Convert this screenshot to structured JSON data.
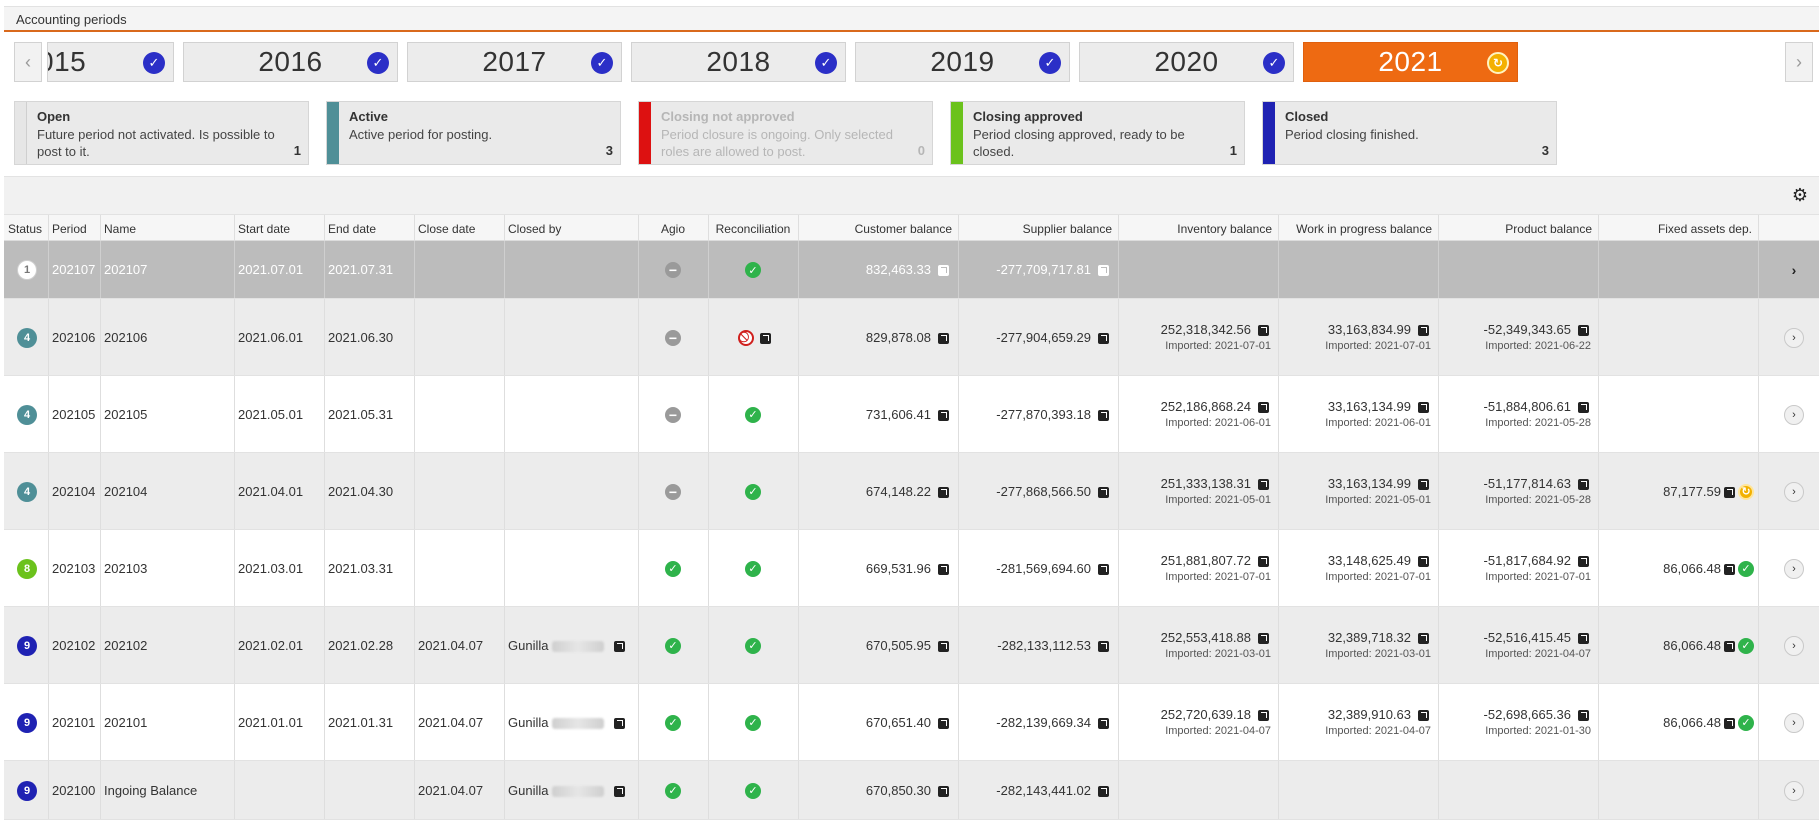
{
  "header": {
    "title": "Accounting periods"
  },
  "years": {
    "prev_icon": "chevron-left-icon",
    "next_icon": "chevron-right-icon",
    "items": [
      {
        "label": "015",
        "state": "closed",
        "badge_icon": "check-icon"
      },
      {
        "label": "2016",
        "state": "closed",
        "badge_icon": "check-icon"
      },
      {
        "label": "2017",
        "state": "closed",
        "badge_icon": "check-icon"
      },
      {
        "label": "2018",
        "state": "closed",
        "badge_icon": "check-icon"
      },
      {
        "label": "2019",
        "state": "closed",
        "badge_icon": "check-icon"
      },
      {
        "label": "2020",
        "state": "closed",
        "badge_icon": "check-icon"
      },
      {
        "label": "2021",
        "state": "active",
        "badge_icon": "refresh-icon"
      }
    ]
  },
  "legend": [
    {
      "title": "Open",
      "desc": "Future period not activated. Is possible to post to it.",
      "count": "1",
      "color": "#e6e6e6"
    },
    {
      "title": "Active",
      "desc": "Active period for posting.",
      "count": "3",
      "color": "#4f8f97"
    },
    {
      "title": "Closing not approved",
      "desc": "Period closure is ongoing. Only selected roles are allowed to post.",
      "count": "0",
      "color": "#dd1111"
    },
    {
      "title": "Closing approved",
      "desc": "Period closing approved, ready to be closed.",
      "count": "1",
      "color": "#6bc21c"
    },
    {
      "title": "Closed",
      "desc": "Period closing finished.",
      "count": "3",
      "color": "#1f22b3"
    }
  ],
  "toolbar": {
    "settings_icon": "gear-icon"
  },
  "table": {
    "columns": [
      "Status",
      "Period",
      "Name",
      "Start date",
      "End date",
      "Close date",
      "Closed by",
      "Agio",
      "Reconciliation",
      "Customer balance",
      "Supplier balance",
      "Inventory balance",
      "Work in progress balance",
      "Product balance",
      "Fixed assets dep."
    ],
    "rows": [
      {
        "status": "1",
        "period": "202107",
        "name": "202107",
        "start": "2021.07.01",
        "end": "2021.07.31",
        "close": "",
        "closed_by": "",
        "agio": "minus",
        "recon": "ok",
        "customer": "832,463.33",
        "supplier": "-277,709,717.81",
        "inventory": "",
        "inventory_sub": "",
        "wip": "",
        "wip_sub": "",
        "product": "",
        "product_sub": "",
        "fixed": "",
        "fixed_icon": ""
      },
      {
        "status": "4",
        "period": "202106",
        "name": "202106",
        "start": "2021.06.01",
        "end": "2021.06.30",
        "close": "",
        "closed_by": "",
        "agio": "minus",
        "recon": "no",
        "customer": "829,878.08",
        "supplier": "-277,904,659.29",
        "inventory": "252,318,342.56",
        "inventory_sub": "Imported: 2021-07-01",
        "wip": "33,163,834.99",
        "wip_sub": "Imported: 2021-07-01",
        "product": "-52,349,343.65",
        "product_sub": "Imported: 2021-06-22",
        "fixed": "",
        "fixed_icon": ""
      },
      {
        "status": "4",
        "period": "202105",
        "name": "202105",
        "start": "2021.05.01",
        "end": "2021.05.31",
        "close": "",
        "closed_by": "",
        "agio": "minus",
        "recon": "ok",
        "customer": "731,606.41",
        "supplier": "-277,870,393.18",
        "inventory": "252,186,868.24",
        "inventory_sub": "Imported: 2021-06-01",
        "wip": "33,163,134.99",
        "wip_sub": "Imported: 2021-06-01",
        "product": "-51,884,806.61",
        "product_sub": "Imported: 2021-05-28",
        "fixed": "",
        "fixed_icon": ""
      },
      {
        "status": "4",
        "period": "202104",
        "name": "202104",
        "start": "2021.04.01",
        "end": "2021.04.30",
        "close": "",
        "closed_by": "",
        "agio": "minus",
        "recon": "ok",
        "customer": "674,148.22",
        "supplier": "-277,868,566.50",
        "inventory": "251,333,138.31",
        "inventory_sub": "Imported: 2021-05-01",
        "wip": "33,163,134.99",
        "wip_sub": "Imported: 2021-05-01",
        "product": "-51,177,814.63",
        "product_sub": "Imported: 2021-05-28",
        "fixed": "87,177.59",
        "fixed_icon": "pending"
      },
      {
        "status": "8",
        "period": "202103",
        "name": "202103",
        "start": "2021.03.01",
        "end": "2021.03.31",
        "close": "",
        "closed_by": "",
        "agio": "ok",
        "recon": "ok",
        "customer": "669,531.96",
        "supplier": "-281,569,694.60",
        "inventory": "251,881,807.72",
        "inventory_sub": "Imported: 2021-07-01",
        "wip": "33,148,625.49",
        "wip_sub": "Imported: 2021-07-01",
        "product": "-51,817,684.92",
        "product_sub": "Imported: 2021-07-01",
        "fixed": "86,066.48",
        "fixed_icon": "ok"
      },
      {
        "status": "9",
        "period": "202102",
        "name": "202102",
        "start": "2021.02.01",
        "end": "2021.02.28",
        "close": "2021.04.07",
        "closed_by": "Gunilla",
        "agio": "ok",
        "recon": "ok",
        "customer": "670,505.95",
        "supplier": "-282,133,112.53",
        "inventory": "252,553,418.88",
        "inventory_sub": "Imported: 2021-03-01",
        "wip": "32,389,718.32",
        "wip_sub": "Imported: 2021-03-01",
        "product": "-52,516,415.45",
        "product_sub": "Imported: 2021-04-07",
        "fixed": "86,066.48",
        "fixed_icon": "ok"
      },
      {
        "status": "9",
        "period": "202101",
        "name": "202101",
        "start": "2021.01.01",
        "end": "2021.01.31",
        "close": "2021.04.07",
        "closed_by": "Gunilla",
        "agio": "ok",
        "recon": "ok",
        "customer": "670,651.40",
        "supplier": "-282,139,669.34",
        "inventory": "252,720,639.18",
        "inventory_sub": "Imported: 2021-04-07",
        "wip": "32,389,910.63",
        "wip_sub": "Imported: 2021-04-07",
        "product": "-52,698,665.36",
        "product_sub": "Imported: 2021-01-30",
        "fixed": "86,066.48",
        "fixed_icon": "ok"
      },
      {
        "status": "9",
        "period": "202100",
        "name": "Ingoing Balance",
        "start": "",
        "end": "",
        "close": "2021.04.07",
        "closed_by": "Gunilla",
        "agio": "ok",
        "recon": "ok",
        "customer": "670,850.30",
        "supplier": "-282,143,441.02",
        "inventory": "",
        "inventory_sub": "",
        "wip": "",
        "wip_sub": "",
        "product": "",
        "product_sub": "",
        "fixed": "",
        "fixed_icon": ""
      }
    ]
  }
}
